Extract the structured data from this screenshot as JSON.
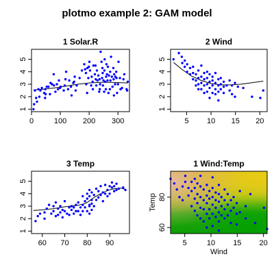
{
  "page": {
    "title": "plotmo example 2: GAM model"
  },
  "chart_data": [
    {
      "type": "scatter",
      "title": "1  Solar.R",
      "xlabel": "",
      "ylabel": "",
      "xlim": [
        0,
        340
      ],
      "ylim": [
        0.8,
        5.8
      ],
      "xticks": [
        0,
        100,
        200,
        300
      ],
      "yticks": [
        1,
        2,
        3,
        4,
        5
      ],
      "points": [
        [
          7,
          1.0
        ],
        [
          9,
          1.4
        ],
        [
          12,
          2.5
        ],
        [
          16,
          1.9
        ],
        [
          19,
          1.6
        ],
        [
          24,
          2.6
        ],
        [
          27,
          2.0
        ],
        [
          31,
          2.5
        ],
        [
          36,
          2.7
        ],
        [
          44,
          2.3
        ],
        [
          47,
          1.9
        ],
        [
          48,
          2.6
        ],
        [
          49,
          2.2
        ],
        [
          53,
          2.8
        ],
        [
          59,
          2.8
        ],
        [
          64,
          2.2
        ],
        [
          66,
          3.1
        ],
        [
          71,
          3.0
        ],
        [
          77,
          3.8
        ],
        [
          78,
          2.9
        ],
        [
          83,
          2.4
        ],
        [
          88,
          3.0
        ],
        [
          92,
          2.6
        ],
        [
          95,
          3.3
        ],
        [
          99,
          2.7
        ],
        [
          101,
          2.8
        ],
        [
          112,
          2.5
        ],
        [
          115,
          2.9
        ],
        [
          118,
          3.4
        ],
        [
          120,
          4.0
        ],
        [
          127,
          2.6
        ],
        [
          131,
          3.3
        ],
        [
          137,
          2.8
        ],
        [
          139,
          2.1
        ],
        [
          145,
          3.1
        ],
        [
          148,
          3.2
        ],
        [
          150,
          3.6
        ],
        [
          153,
          2.5
        ],
        [
          157,
          2.9
        ],
        [
          167,
          3.5
        ],
        [
          175,
          4.1
        ],
        [
          183,
          4.6
        ],
        [
          186,
          4.2
        ],
        [
          189,
          3.9
        ],
        [
          190,
          3.0
        ],
        [
          193,
          2.3
        ],
        [
          194,
          4.3
        ],
        [
          197,
          3.5
        ],
        [
          199,
          4.4
        ],
        [
          201,
          4.8
        ],
        [
          203,
          4.1
        ],
        [
          207,
          2.9
        ],
        [
          209,
          3.6
        ],
        [
          212,
          3.2
        ],
        [
          213,
          2.6
        ],
        [
          215,
          4.5
        ],
        [
          220,
          3.8
        ],
        [
          222,
          4.5
        ],
        [
          223,
          3.4
        ],
        [
          225,
          2.9
        ],
        [
          227,
          4.1
        ],
        [
          229,
          3.3
        ],
        [
          232,
          3.7
        ],
        [
          235,
          2.4
        ],
        [
          236,
          3.4
        ],
        [
          237,
          2.6
        ],
        [
          238,
          3.0
        ],
        [
          240,
          5.6
        ],
        [
          243,
          4.8
        ],
        [
          245,
          3.5
        ],
        [
          246,
          4.3
        ],
        [
          247,
          3.9
        ],
        [
          248,
          2.9
        ],
        [
          250,
          3.3
        ],
        [
          252,
          2.4
        ],
        [
          253,
          4.1
        ],
        [
          254,
          5.0
        ],
        [
          256,
          3.2
        ],
        [
          258,
          2.6
        ],
        [
          259,
          3.6
        ],
        [
          260,
          4.6
        ],
        [
          262,
          3.8
        ],
        [
          264,
          3.3
        ],
        [
          265,
          4.4
        ],
        [
          267,
          2.3
        ],
        [
          269,
          3.7
        ],
        [
          272,
          2.6
        ],
        [
          273,
          4.0
        ],
        [
          274,
          3.3
        ],
        [
          276,
          5.2
        ],
        [
          279,
          3.6
        ],
        [
          281,
          2.8
        ],
        [
          284,
          4.3
        ],
        [
          285,
          3.4
        ],
        [
          286,
          2.1
        ],
        [
          287,
          3.8
        ],
        [
          290,
          3.0
        ],
        [
          291,
          3.6
        ],
        [
          294,
          4.0
        ],
        [
          295,
          3.5
        ],
        [
          297,
          2.3
        ],
        [
          300,
          3.0
        ],
        [
          302,
          4.8
        ],
        [
          307,
          3.5
        ],
        [
          309,
          2.6
        ],
        [
          314,
          2.7
        ],
        [
          319,
          3.4
        ],
        [
          322,
          3.8
        ],
        [
          330,
          2.6
        ],
        [
          332,
          2.5
        ],
        [
          334,
          3.2
        ]
      ],
      "fit": [
        [
          7,
          2.55
        ],
        [
          40,
          2.6
        ],
        [
          80,
          2.7
        ],
        [
          120,
          2.85
        ],
        [
          160,
          3.0
        ],
        [
          200,
          3.1
        ],
        [
          240,
          3.15
        ],
        [
          280,
          3.15
        ],
        [
          334,
          3.1
        ]
      ]
    },
    {
      "type": "scatter",
      "title": "2  Wind",
      "xlabel": "",
      "ylabel": "",
      "xlim": [
        1.7,
        21.5
      ],
      "ylim": [
        0.8,
        5.8
      ],
      "xticks": [
        5,
        10,
        15,
        20
      ],
      "yticks": [
        1,
        2,
        3,
        4,
        5
      ],
      "points": [
        [
          2.3,
          5.0
        ],
        [
          3.4,
          5.5
        ],
        [
          4.0,
          5.2
        ],
        [
          4.1,
          4.7
        ],
        [
          4.6,
          4.9
        ],
        [
          4.6,
          4.4
        ],
        [
          5.1,
          4.6
        ],
        [
          5.1,
          4.0
        ],
        [
          5.7,
          4.3
        ],
        [
          5.7,
          3.8
        ],
        [
          6.3,
          4.4
        ],
        [
          6.3,
          3.9
        ],
        [
          6.3,
          3.4
        ],
        [
          6.9,
          3.3
        ],
        [
          6.9,
          3.8
        ],
        [
          6.9,
          2.9
        ],
        [
          7.4,
          4.1
        ],
        [
          7.4,
          3.5
        ],
        [
          7.4,
          2.6
        ],
        [
          7.4,
          3.0
        ],
        [
          8.0,
          3.6
        ],
        [
          8.0,
          3.1
        ],
        [
          8.0,
          2.6
        ],
        [
          8.0,
          4.5
        ],
        [
          8.6,
          3.9
        ],
        [
          8.6,
          3.4
        ],
        [
          8.6,
          2.9
        ],
        [
          8.6,
          2.3
        ],
        [
          9.2,
          3.5
        ],
        [
          9.2,
          3.0
        ],
        [
          9.2,
          2.4
        ],
        [
          9.2,
          4.0
        ],
        [
          9.7,
          3.2
        ],
        [
          9.7,
          2.7
        ],
        [
          9.7,
          1.9
        ],
        [
          9.7,
          3.8
        ],
        [
          10.3,
          3.3
        ],
        [
          10.3,
          2.9
        ],
        [
          10.3,
          2.3
        ],
        [
          10.3,
          3.6
        ],
        [
          10.9,
          3.1
        ],
        [
          10.9,
          2.6
        ],
        [
          10.9,
          3.9
        ],
        [
          10.9,
          2.2
        ],
        [
          11.5,
          3.4
        ],
        [
          11.5,
          2.9
        ],
        [
          11.5,
          2.4
        ],
        [
          11.5,
          1.7
        ],
        [
          12.0,
          3.0
        ],
        [
          12.0,
          2.6
        ],
        [
          12.0,
          3.5
        ],
        [
          12.6,
          2.8
        ],
        [
          12.6,
          2.3
        ],
        [
          12.6,
          3.2
        ],
        [
          13.2,
          2.9
        ],
        [
          13.8,
          2.5
        ],
        [
          13.8,
          3.3
        ],
        [
          14.3,
          2.2
        ],
        [
          14.3,
          2.9
        ],
        [
          14.9,
          3.1
        ],
        [
          14.9,
          2.0
        ],
        [
          15.5,
          2.8
        ],
        [
          16.6,
          2.7
        ],
        [
          18.4,
          2.0
        ],
        [
          20.1,
          1.9
        ],
        [
          20.7,
          2.5
        ]
      ],
      "fit": [
        [
          2.3,
          4.75
        ],
        [
          4,
          4.2
        ],
        [
          6,
          3.65
        ],
        [
          8,
          3.3
        ],
        [
          10,
          3.05
        ],
        [
          12,
          2.95
        ],
        [
          14,
          2.95
        ],
        [
          16,
          3.0
        ],
        [
          18,
          3.1
        ],
        [
          20.7,
          3.25
        ]
      ]
    },
    {
      "type": "scatter",
      "title": "3  Temp",
      "xlabel": "",
      "ylabel": "",
      "xlim": [
        55.2,
        98.8
      ],
      "ylim": [
        0.8,
        5.8
      ],
      "xticks": [
        60,
        70,
        80,
        90
      ],
      "yticks": [
        1,
        2,
        3,
        4,
        5
      ],
      "points": [
        [
          57,
          1.8
        ],
        [
          58,
          2.2
        ],
        [
          59,
          2.4
        ],
        [
          61,
          2.5
        ],
        [
          61,
          2.0
        ],
        [
          62,
          2.8
        ],
        [
          63,
          3.1
        ],
        [
          64,
          2.4
        ],
        [
          65,
          2.6
        ],
        [
          65,
          3.0
        ],
        [
          66,
          3.3
        ],
        [
          66,
          2.2
        ],
        [
          67,
          2.8
        ],
        [
          67,
          2.3
        ],
        [
          68,
          2.5
        ],
        [
          68,
          3.0
        ],
        [
          69,
          2.1
        ],
        [
          69,
          2.7
        ],
        [
          70,
          3.4
        ],
        [
          70,
          2.6
        ],
        [
          71,
          2.4
        ],
        [
          72,
          2.9
        ],
        [
          72,
          2.3
        ],
        [
          73,
          3.0
        ],
        [
          73,
          2.7
        ],
        [
          74,
          2.9
        ],
        [
          74,
          2.4
        ],
        [
          75,
          3.1
        ],
        [
          75,
          2.6
        ],
        [
          76,
          2.6
        ],
        [
          76,
          3.3
        ],
        [
          77,
          2.9
        ],
        [
          77,
          2.3
        ],
        [
          78,
          3.1
        ],
        [
          78,
          2.6
        ],
        [
          78,
          3.8
        ],
        [
          79,
          3.4
        ],
        [
          79,
          2.9
        ],
        [
          80,
          3.6
        ],
        [
          80,
          2.6
        ],
        [
          80,
          4.0
        ],
        [
          81,
          3.8
        ],
        [
          81,
          3.1
        ],
        [
          81,
          2.4
        ],
        [
          81,
          4.3
        ],
        [
          81,
          3.0
        ],
        [
          82,
          3.5
        ],
        [
          82,
          2.7
        ],
        [
          82,
          4.1
        ],
        [
          82,
          3.2
        ],
        [
          83,
          3.9
        ],
        [
          83,
          3.0
        ],
        [
          84,
          4.4
        ],
        [
          84,
          3.5
        ],
        [
          85,
          4.2
        ],
        [
          85,
          3.7
        ],
        [
          86,
          4.6
        ],
        [
          86,
          3.9
        ],
        [
          87,
          4.1
        ],
        [
          87,
          3.4
        ],
        [
          88,
          4.7
        ],
        [
          88,
          4.0
        ],
        [
          89,
          4.3
        ],
        [
          89,
          3.8
        ],
        [
          90,
          4.6
        ],
        [
          90,
          4.0
        ],
        [
          91,
          4.5
        ],
        [
          91,
          4.9
        ],
        [
          92,
          4.2
        ],
        [
          92,
          4.6
        ],
        [
          93,
          4.3
        ],
        [
          93,
          4.8
        ],
        [
          94,
          4.4
        ],
        [
          96,
          4.5
        ],
        [
          97,
          4.3
        ]
      ],
      "fit": [
        [
          56,
          2.65
        ],
        [
          60,
          2.7
        ],
        [
          65,
          2.8
        ],
        [
          70,
          2.95
        ],
        [
          75,
          3.05
        ],
        [
          78,
          3.15
        ],
        [
          80,
          3.3
        ],
        [
          83,
          3.7
        ],
        [
          86,
          4.0
        ],
        [
          89,
          4.25
        ],
        [
          92,
          4.4
        ],
        [
          95,
          4.45
        ],
        [
          97,
          4.35
        ]
      ]
    },
    {
      "type": "heatmap",
      "title": "1 Wind:Temp",
      "xlabel": "Wind",
      "ylabel": "Temp",
      "xlim": [
        2.3,
        20.7
      ],
      "ylim": [
        56,
        97
      ],
      "xticks": [
        5,
        10,
        15,
        20
      ],
      "yticks": [
        60,
        80
      ],
      "points": [
        [
          2.3,
          92
        ],
        [
          3.0,
          89
        ],
        [
          3.5,
          85
        ],
        [
          4.0,
          80
        ],
        [
          4.6,
          87
        ],
        [
          4.6,
          78
        ],
        [
          5.1,
          94
        ],
        [
          5.1,
          90
        ],
        [
          5.7,
          86
        ],
        [
          5.7,
          81
        ],
        [
          6.3,
          90
        ],
        [
          6.3,
          84
        ],
        [
          6.3,
          74
        ],
        [
          6.9,
          92
        ],
        [
          6.9,
          86
        ],
        [
          6.9,
          79
        ],
        [
          6.9,
          71
        ],
        [
          7.4,
          89
        ],
        [
          7.4,
          82
        ],
        [
          7.4,
          76
        ],
        [
          7.4,
          68
        ],
        [
          8.0,
          94
        ],
        [
          8.0,
          87
        ],
        [
          8.0,
          80
        ],
        [
          8.0,
          73
        ],
        [
          8.0,
          66
        ],
        [
          8.6,
          85
        ],
        [
          8.6,
          78
        ],
        [
          8.6,
          72
        ],
        [
          8.6,
          64
        ],
        [
          9.2,
          88
        ],
        [
          9.2,
          81
        ],
        [
          9.2,
          76
        ],
        [
          9.2,
          69
        ],
        [
          9.2,
          60
        ],
        [
          9.7,
          84
        ],
        [
          9.7,
          79
        ],
        [
          9.7,
          72
        ],
        [
          9.7,
          66
        ],
        [
          10.3,
          93
        ],
        [
          10.3,
          86
        ],
        [
          10.3,
          80
        ],
        [
          10.3,
          75
        ],
        [
          10.3,
          69
        ],
        [
          10.3,
          61
        ],
        [
          10.9,
          83
        ],
        [
          10.9,
          78
        ],
        [
          10.9,
          73
        ],
        [
          10.9,
          67
        ],
        [
          11.5,
          88
        ],
        [
          11.5,
          82
        ],
        [
          11.5,
          77
        ],
        [
          11.5,
          70
        ],
        [
          11.5,
          64
        ],
        [
          11.5,
          58
        ],
        [
          12.0,
          80
        ],
        [
          12.0,
          74
        ],
        [
          12.0,
          68
        ],
        [
          12.6,
          85
        ],
        [
          12.6,
          78
        ],
        [
          12.6,
          72
        ],
        [
          12.6,
          66
        ],
        [
          13.2,
          82
        ],
        [
          13.2,
          75
        ],
        [
          13.2,
          68
        ],
        [
          13.8,
          78
        ],
        [
          13.8,
          71
        ],
        [
          13.8,
          63
        ],
        [
          14.3,
          80
        ],
        [
          14.3,
          73
        ],
        [
          14.9,
          76
        ],
        [
          14.9,
          69
        ],
        [
          14.9,
          62
        ],
        [
          15.5,
          84
        ],
        [
          15.5,
          70
        ],
        [
          16.6,
          74
        ],
        [
          16.6,
          66
        ],
        [
          17.5,
          82
        ],
        [
          18.4,
          63
        ],
        [
          20.1,
          73
        ],
        [
          20.7,
          59
        ]
      ]
    }
  ]
}
